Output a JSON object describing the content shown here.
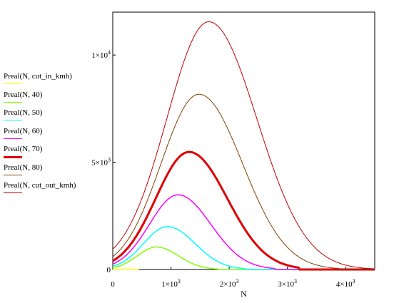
{
  "chart_data": {
    "type": "line",
    "xlabel": "N",
    "ylabel": "",
    "xlim": [
      0,
      4500
    ],
    "ylim": [
      0,
      12000
    ],
    "x_ticks": [
      {
        "value": 0,
        "label": "0"
      },
      {
        "value": 1000,
        "mant": "1",
        "exp": "3"
      },
      {
        "value": 2000,
        "mant": "2",
        "exp": "3"
      },
      {
        "value": 3000,
        "mant": "3",
        "exp": "3"
      },
      {
        "value": 4000,
        "mant": "4",
        "exp": "3"
      }
    ],
    "y_ticks": [
      {
        "value": 0,
        "label": "0"
      },
      {
        "value": 5000,
        "mant": "5",
        "exp": "3"
      },
      {
        "value": 10000,
        "mant": "1",
        "exp": "4"
      }
    ],
    "series": [
      {
        "name": "Preal(N, cut_in_kmh)",
        "color": "#ffff00",
        "width": 1.5,
        "peak_x": 400,
        "peak_y": 0,
        "start_y": 0,
        "end_x": 450,
        "end_y": 0,
        "sigma": 300
      },
      {
        "name": "Preal(N, 40)",
        "color": "#80ff00",
        "width": 1.5,
        "peak_x": 750,
        "peak_y": 1050,
        "start_y": 80,
        "end_x": 1800,
        "end_y": 0,
        "sigma": 330
      },
      {
        "name": "Preal(N, 50)",
        "color": "#00ffff",
        "width": 1.5,
        "peak_x": 940,
        "peak_y": 2000,
        "start_y": 150,
        "end_x": 2300,
        "end_y": 0,
        "sigma": 410
      },
      {
        "name": "Preal(N, 60)",
        "color": "#ff00ff",
        "width": 1.5,
        "peak_x": 1120,
        "peak_y": 3480,
        "start_y": 250,
        "end_x": 2800,
        "end_y": 0,
        "sigma": 490
      },
      {
        "name": "Preal(N, 70)",
        "color": "#e00000",
        "width": 3,
        "peak_x": 1310,
        "peak_y": 5480,
        "start_y": 400,
        "end_x": 3200,
        "end_y": 0,
        "sigma": 570
      },
      {
        "name": "Preal(N, 80)",
        "color": "#804000",
        "width": 1,
        "peak_x": 1480,
        "peak_y": 8170,
        "start_y": 600,
        "end_x": 3900,
        "end_y": 0,
        "sigma": 650
      },
      {
        "name": "Preal(N, cut_out_kmh)",
        "color": "#c00000",
        "width": 1,
        "peak_x": 1650,
        "peak_y": 11550,
        "start_y": 950,
        "end_x": 4500,
        "end_y": 0,
        "sigma": 720
      }
    ]
  }
}
